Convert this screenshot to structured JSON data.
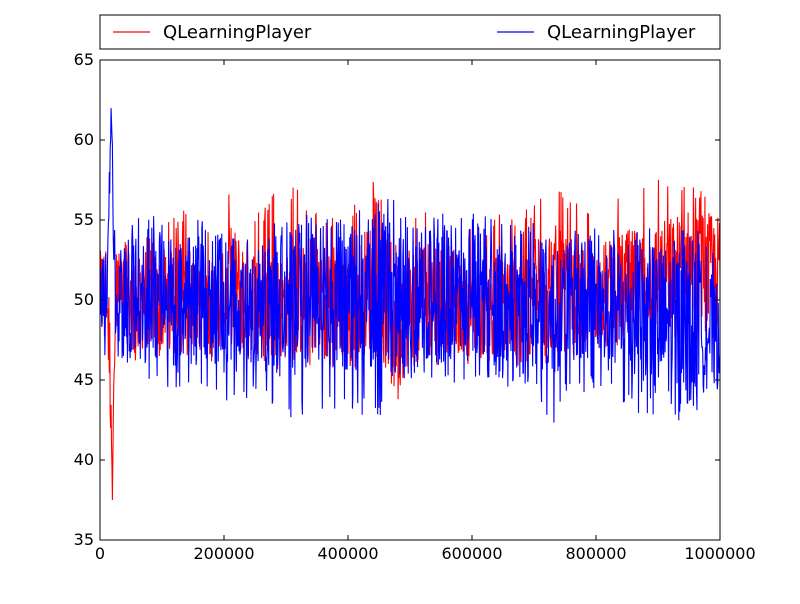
{
  "chart_data": {
    "type": "line",
    "xlim": [
      0,
      1000000
    ],
    "ylim": [
      35,
      65
    ],
    "grid": false,
    "legend_position": "top, outside plot, two columns",
    "x_ticks": [
      "0",
      "200000",
      "400000",
      "600000",
      "800000",
      "1000000"
    ],
    "y_ticks": [
      "35",
      "40",
      "45",
      "50",
      "55",
      "60",
      "65"
    ],
    "series": [
      {
        "name": "QLearningPlayer",
        "color": "#ff0000",
        "x": [
          0,
          10000,
          18000,
          20000,
          22000,
          26000,
          40000,
          60000,
          80000,
          100000,
          120000,
          150000,
          180000,
          200000,
          210000,
          250000,
          300000,
          350000,
          400000,
          440000,
          480000,
          500000,
          550000,
          600000,
          650000,
          700000,
          725000,
          760000,
          800000,
          850000,
          900000,
          950000,
          1000000
        ],
        "y": [
          50.5,
          51.5,
          44,
          37.5,
          45,
          49.5,
          50.5,
          49.5,
          50.5,
          49.5,
          51,
          50,
          49.5,
          50,
          51,
          50,
          49.5,
          50.5,
          49.5,
          51,
          49,
          50,
          50.5,
          49,
          50,
          50.5,
          51,
          50,
          50.5,
          51,
          51.5,
          52,
          51.5
        ],
        "low_envelope": [
          47.5,
          47,
          40,
          37.5,
          44.5,
          46,
          46.5,
          46,
          46.5,
          46,
          46.5,
          46.5,
          46,
          46.5,
          46.5,
          46,
          45.5,
          46,
          45.5,
          46,
          43.5,
          45.5,
          46,
          46,
          46,
          45.5,
          46,
          46,
          47,
          47,
          47.5,
          47.5,
          47
        ],
        "high_envelope": [
          53.5,
          54,
          50,
          46,
          54,
          53.5,
          54,
          54,
          54.5,
          54,
          56,
          55.5,
          54.5,
          55,
          57.5,
          55.5,
          57.5,
          56,
          55.5,
          57.5,
          54.5,
          55.5,
          55.5,
          55,
          55.5,
          56,
          58.5,
          56,
          56.5,
          57.5,
          58.5,
          57.5,
          56.5
        ]
      },
      {
        "name": "QLearningPlayer",
        "color": "#0000ff",
        "x": [
          0,
          10000,
          15000,
          18000,
          20000,
          22000,
          26000,
          40000,
          60000,
          80000,
          100000,
          120000,
          150000,
          180000,
          200000,
          250000,
          300000,
          350000,
          400000,
          450000,
          480000,
          500000,
          550000,
          600000,
          650000,
          700000,
          725000,
          760000,
          800000,
          850000,
          900000,
          950000,
          1000000
        ],
        "y": [
          50,
          50.5,
          54,
          62.5,
          58,
          52,
          49.5,
          50.5,
          50,
          50.5,
          50,
          49.5,
          50,
          50.5,
          49.5,
          50,
          49.5,
          50.5,
          50,
          50.5,
          50,
          50.5,
          50,
          50.5,
          49.5,
          49.5,
          49,
          50,
          49,
          49,
          48.5,
          48.5,
          48
        ],
        "low_envelope": [
          46.5,
          46,
          48,
          55,
          50,
          47,
          45.5,
          45.5,
          45.5,
          45,
          45,
          44,
          44.5,
          44.5,
          42.5,
          44,
          42,
          43,
          43,
          42.5,
          45,
          44.5,
          45,
          44.5,
          44,
          44.5,
          41.5,
          44.5,
          43.5,
          43.5,
          42,
          42.5,
          44.5
        ],
        "high_envelope": [
          53,
          53.5,
          58,
          62.5,
          60.5,
          55,
          53.5,
          54,
          55.5,
          55.5,
          55,
          54.5,
          55,
          55.5,
          55,
          55,
          55,
          55.5,
          55.5,
          56.5,
          56.5,
          55.5,
          55.5,
          55.5,
          55,
          55,
          53.5,
          54.5,
          54.5,
          54.5,
          54.5,
          54.5,
          54
        ]
      }
    ]
  }
}
